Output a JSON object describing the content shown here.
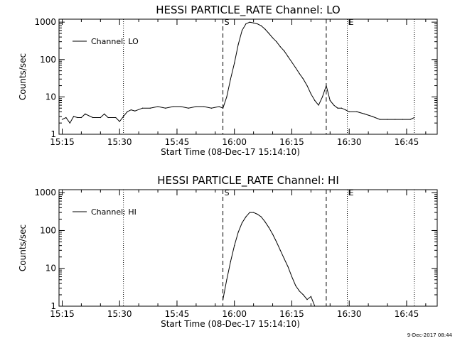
{
  "footer_timestamp": "9-Dec-2017 08:44",
  "chart_data": [
    {
      "type": "line",
      "title": "HESSI PARTICLE_RATE Channel: LO",
      "xlabel": "Start Time (08-Dec-17 15:14:10)",
      "ylabel": "Counts/sec",
      "y_scale": "log",
      "ylim": [
        1,
        1200
      ],
      "xlim": [
        "15:14:10",
        "16:53:00"
      ],
      "x_ticks": [
        "15:15",
        "15:30",
        "15:45",
        "16:00",
        "16:15",
        "16:30",
        "16:45"
      ],
      "y_ticks": [
        "1",
        "10",
        "100",
        "1000"
      ],
      "legend": {
        "label": "Channel: LO",
        "position": "top-left"
      },
      "markers": [
        {
          "label": "S",
          "time": "15:57:00",
          "style": "dashed"
        },
        {
          "label": "E",
          "time": "16:29:30",
          "style": "dotted"
        }
      ],
      "dashed_lines": [
        "15:57:00",
        "16:24:00"
      ],
      "dotted_lines": [
        "15:31:00",
        "16:29:30",
        "16:47:00"
      ],
      "series": [
        {
          "name": "Channel: LO",
          "x": [
            "15:15:00",
            "15:16:00",
            "15:17:00",
            "15:18:00",
            "15:19:00",
            "15:20:00",
            "15:21:00",
            "15:23:00",
            "15:25:00",
            "15:26:00",
            "15:27:00",
            "15:29:00",
            "15:30:00",
            "15:31:00",
            "15:32:00",
            "15:33:00",
            "15:34:00",
            "15:36:00",
            "15:38:00",
            "15:40:00",
            "15:42:00",
            "15:44:00",
            "15:46:00",
            "15:48:00",
            "15:50:00",
            "15:52:00",
            "15:54:00",
            "15:56:00",
            "15:57:00",
            "15:58:00",
            "15:59:00",
            "16:00:00",
            "16:01:00",
            "16:02:00",
            "16:03:00",
            "16:04:00",
            "16:05:00",
            "16:06:00",
            "16:07:00",
            "16:08:00",
            "16:09:00",
            "16:10:00",
            "16:11:00",
            "16:12:00",
            "16:13:00",
            "16:14:00",
            "16:15:00",
            "16:16:00",
            "16:17:00",
            "16:18:00",
            "16:19:00",
            "16:20:00",
            "16:21:00",
            "16:22:00",
            "16:23:00",
            "16:24:00",
            "16:25:00",
            "16:26:00",
            "16:27:00",
            "16:28:00",
            "16:29:00",
            "16:30:00",
            "16:32:00",
            "16:34:00",
            "16:36:00",
            "16:38:00",
            "16:40:00",
            "16:42:00",
            "16:44:00",
            "16:46:00",
            "16:47:00"
          ],
          "y": [
            2.5,
            2.8,
            2.0,
            3.0,
            2.8,
            2.8,
            3.5,
            2.8,
            2.8,
            3.5,
            2.8,
            2.8,
            2.2,
            3.0,
            4.0,
            4.5,
            4.2,
            5.0,
            5.0,
            5.5,
            5.0,
            5.5,
            5.5,
            5.0,
            5.5,
            5.5,
            5.0,
            5.5,
            5.0,
            10,
            30,
            80,
            250,
            600,
            900,
            1000,
            950,
            900,
            800,
            650,
            500,
            380,
            300,
            220,
            170,
            120,
            85,
            60,
            42,
            30,
            20,
            12,
            8,
            6,
            10,
            20,
            8,
            6,
            5,
            5,
            4.5,
            4,
            4,
            3.5,
            3,
            2.5,
            2.5,
            2.5,
            2.5,
            2.5,
            2.8
          ]
        }
      ]
    },
    {
      "type": "line",
      "title": "HESSI PARTICLE_RATE Channel: HI",
      "xlabel": "Start Time (08-Dec-17 15:14:10)",
      "ylabel": "Counts/sec",
      "y_scale": "log",
      "ylim": [
        1,
        1200
      ],
      "xlim": [
        "15:14:10",
        "16:53:00"
      ],
      "x_ticks": [
        "15:15",
        "15:30",
        "15:45",
        "16:00",
        "16:15",
        "16:30",
        "16:45"
      ],
      "y_ticks": [
        "1",
        "10",
        "100",
        "1000"
      ],
      "legend": {
        "label": "Channel: HI",
        "position": "top-left"
      },
      "markers": [
        {
          "label": "S",
          "time": "15:57:00",
          "style": "dashed"
        },
        {
          "label": "E",
          "time": "16:29:30",
          "style": "dotted"
        }
      ],
      "dashed_lines": [
        "15:57:00",
        "16:24:00"
      ],
      "dotted_lines": [
        "15:31:00",
        "16:29:30",
        "16:47:00"
      ],
      "series": [
        {
          "name": "Channel: HI",
          "x": [
            "15:57:00",
            "15:58:00",
            "15:59:00",
            "16:00:00",
            "16:01:00",
            "16:02:00",
            "16:03:00",
            "16:04:00",
            "16:05:00",
            "16:06:00",
            "16:07:00",
            "16:08:00",
            "16:09:00",
            "16:10:00",
            "16:11:00",
            "16:12:00",
            "16:13:00",
            "16:14:00",
            "16:15:00",
            "16:16:00",
            "16:17:00",
            "16:18:00",
            "16:19:00",
            "16:20:00",
            "16:21:00"
          ],
          "y": [
            1.5,
            5,
            15,
            40,
            90,
            160,
            230,
            300,
            300,
            270,
            230,
            170,
            120,
            80,
            50,
            30,
            18,
            11,
            6,
            3.5,
            2.5,
            2,
            1.5,
            1.8,
            1
          ]
        }
      ]
    }
  ]
}
